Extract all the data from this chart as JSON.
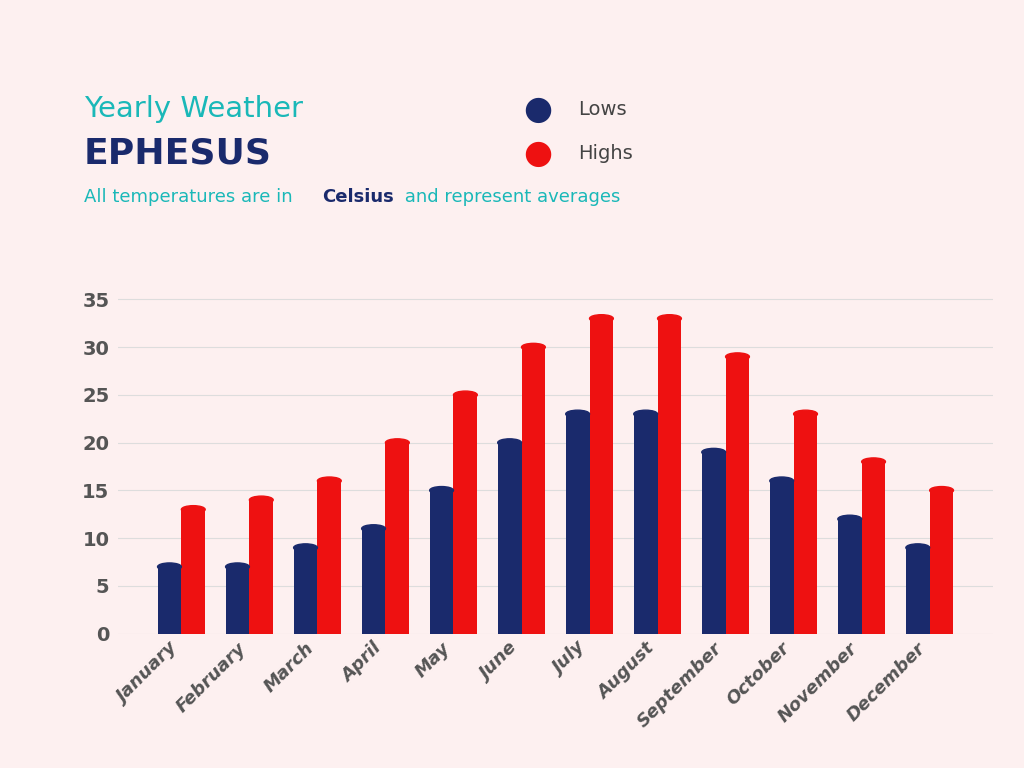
{
  "title_yearly": "Yearly Weather",
  "title_city": "EPHESUS",
  "months": [
    "January",
    "February",
    "March",
    "April",
    "May",
    "June",
    "July",
    "August",
    "September",
    "October",
    "November",
    "December"
  ],
  "lows": [
    7,
    7,
    9,
    11,
    15,
    20,
    23,
    23,
    19,
    16,
    12,
    9
  ],
  "highs": [
    13,
    14,
    16,
    20,
    25,
    30,
    33,
    33,
    29,
    23,
    18,
    15
  ],
  "color_lows": "#1a2a6c",
  "color_highs": "#ee1111",
  "background_color": "#fdf0f0",
  "title_yearly_color": "#1ab8b8",
  "title_city_color": "#1a2a6c",
  "subtitle_color": "#1ab8b8",
  "subtitle_bold_color": "#1a2a6c",
  "ytick_color": "#555555",
  "grid_color": "#dddddd",
  "ylim": [
    0,
    37
  ],
  "yticks": [
    0,
    5,
    10,
    15,
    20,
    25,
    30,
    35
  ],
  "bar_width": 0.35,
  "legend_lows": "Lows",
  "legend_highs": "Highs"
}
